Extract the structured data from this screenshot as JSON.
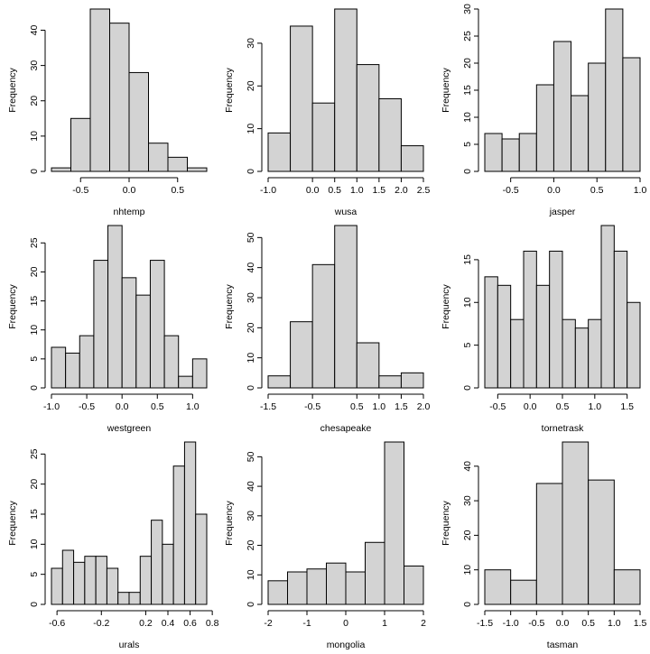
{
  "chart_data": [
    {
      "type": "bar",
      "xlabel": "nhtemp",
      "ylabel": "Frequency",
      "bin_edges": [
        -0.8,
        -0.6,
        -0.4,
        -0.2,
        0.0,
        0.2,
        0.4,
        0.6,
        0.8
      ],
      "values": [
        1,
        15,
        46,
        42,
        28,
        8,
        4,
        1
      ],
      "xlim": [
        -0.8,
        0.8
      ],
      "ylim": [
        0,
        46
      ],
      "x_ticks": [
        -0.5,
        0.0,
        0.5
      ],
      "x_tick_labels": [
        "-0.5",
        "0.0",
        "0.5"
      ],
      "y_ticks": [
        0,
        10,
        20,
        30,
        40
      ],
      "y_tick_labels": [
        "0",
        "10",
        "20",
        "30",
        "40"
      ]
    },
    {
      "type": "bar",
      "xlabel": "wusa",
      "ylabel": "Frequency",
      "bin_edges": [
        -1.0,
        -0.5,
        0.0,
        0.5,
        1.0,
        1.5,
        2.0,
        2.5
      ],
      "values": [
        9,
        34,
        16,
        38,
        25,
        17,
        6
      ],
      "xlim": [
        -1.0,
        2.5
      ],
      "ylim": [
        0,
        38
      ],
      "x_ticks": [
        -1.0,
        0.0,
        0.5,
        1.0,
        1.5,
        2.0,
        2.5
      ],
      "x_tick_labels": [
        "-1.0",
        "0.0",
        "0.5",
        "1.0",
        "1.5",
        "2.0",
        "2.5"
      ],
      "y_ticks": [
        0,
        10,
        20,
        30
      ],
      "y_tick_labels": [
        "0",
        "10",
        "20",
        "30"
      ]
    },
    {
      "type": "bar",
      "xlabel": "jasper",
      "ylabel": "Frequency",
      "bin_edges": [
        -0.8,
        -0.6,
        -0.4,
        -0.2,
        0.0,
        0.2,
        0.4,
        0.6,
        0.8,
        1.0
      ],
      "values": [
        7,
        6,
        7,
        16,
        24,
        14,
        20,
        30,
        21
      ],
      "xlim": [
        -0.8,
        1.0
      ],
      "ylim": [
        0,
        30
      ],
      "x_ticks": [
        -0.5,
        0.0,
        0.5,
        1.0
      ],
      "x_tick_labels": [
        "-0.5",
        "0.0",
        "0.5",
        "1.0"
      ],
      "y_ticks": [
        0,
        5,
        10,
        15,
        20,
        25,
        30
      ],
      "y_tick_labels": [
        "0",
        "5",
        "10",
        "15",
        "20",
        "25",
        "30"
      ]
    },
    {
      "type": "bar",
      "xlabel": "westgreen",
      "ylabel": "Frequency",
      "bin_edges": [
        -1.0,
        -0.8,
        -0.6,
        -0.4,
        -0.2,
        0.0,
        0.2,
        0.4,
        0.6,
        0.8,
        1.0,
        1.2
      ],
      "values": [
        7,
        6,
        9,
        22,
        28,
        19,
        16,
        22,
        9,
        2,
        5
      ],
      "xlim": [
        -1.0,
        1.2
      ],
      "ylim": [
        0,
        28
      ],
      "x_ticks": [
        -1.0,
        -0.5,
        0.0,
        0.5,
        1.0
      ],
      "x_tick_labels": [
        "-1.0",
        "-0.5",
        "0.0",
        "0.5",
        "1.0"
      ],
      "y_ticks": [
        0,
        5,
        10,
        15,
        20,
        25
      ],
      "y_tick_labels": [
        "0",
        "5",
        "10",
        "15",
        "20",
        "25"
      ]
    },
    {
      "type": "bar",
      "xlabel": "chesapeake",
      "ylabel": "Frequency",
      "bin_edges": [
        -1.5,
        -1.0,
        -0.5,
        0.0,
        0.5,
        1.0,
        1.5,
        2.0
      ],
      "values": [
        4,
        22,
        41,
        54,
        15,
        4,
        5
      ],
      "xlim": [
        -1.5,
        2.0
      ],
      "ylim": [
        0,
        54
      ],
      "x_ticks": [
        -1.5,
        -0.5,
        0.5,
        1.0,
        1.5,
        2.0
      ],
      "x_tick_labels": [
        "-1.5",
        "-0.5",
        "0.5",
        "1.0",
        "1.5",
        "2.0"
      ],
      "y_ticks": [
        0,
        10,
        20,
        30,
        40,
        50
      ],
      "y_tick_labels": [
        "0",
        "10",
        "20",
        "30",
        "40",
        "50"
      ]
    },
    {
      "type": "bar",
      "xlabel": "tornetrask",
      "ylabel": "Frequency",
      "bin_edges": [
        -0.7,
        -0.5,
        -0.3,
        -0.1,
        0.1,
        0.3,
        0.5,
        0.7,
        0.9,
        1.1,
        1.3,
        1.5,
        1.7
      ],
      "values": [
        13,
        12,
        8,
        16,
        12,
        16,
        8,
        7,
        8,
        19,
        16,
        10
      ],
      "xlim": [
        -0.7,
        1.7
      ],
      "ylim": [
        0,
        19
      ],
      "x_ticks": [
        -0.5,
        0.0,
        0.5,
        1.0,
        1.5
      ],
      "x_tick_labels": [
        "-0.5",
        "0.0",
        "0.5",
        "1.0",
        "1.5"
      ],
      "y_ticks": [
        0,
        5,
        10,
        15
      ],
      "y_tick_labels": [
        "0",
        "5",
        "10",
        "15"
      ]
    },
    {
      "type": "bar",
      "xlabel": "urals",
      "ylabel": "Frequency",
      "bin_edges": [
        -0.65,
        -0.55,
        -0.45,
        -0.35,
        -0.25,
        -0.15,
        -0.05,
        0.05,
        0.15,
        0.25,
        0.35,
        0.45,
        0.55,
        0.65,
        0.75
      ],
      "values": [
        6,
        9,
        7,
        8,
        8,
        6,
        2,
        2,
        8,
        14,
        10,
        23,
        27,
        15
      ],
      "xlim": [
        -0.65,
        0.75
      ],
      "ylim": [
        0,
        27
      ],
      "x_ticks": [
        -0.6,
        -0.2,
        0.2,
        0.4,
        0.6,
        0.8
      ],
      "x_tick_labels": [
        "-0.6",
        "-0.2",
        "0.2",
        "0.4",
        "0.6",
        "0.8"
      ],
      "y_ticks": [
        0,
        5,
        10,
        15,
        20,
        25
      ],
      "y_tick_labels": [
        "0",
        "5",
        "10",
        "15",
        "20",
        "25"
      ]
    },
    {
      "type": "bar",
      "xlabel": "mongolia",
      "ylabel": "Frequency",
      "bin_edges": [
        -2.0,
        -1.5,
        -1.0,
        -0.5,
        0.0,
        0.5,
        1.0,
        1.5,
        2.0
      ],
      "values": [
        8,
        11,
        12,
        14,
        11,
        21,
        55,
        13
      ],
      "xlim": [
        -2.0,
        2.0
      ],
      "ylim": [
        0,
        55
      ],
      "x_ticks": [
        -2,
        -1,
        0,
        1,
        2
      ],
      "x_tick_labels": [
        "-2",
        "-1",
        "0",
        "1",
        "2"
      ],
      "y_ticks": [
        0,
        10,
        20,
        30,
        40,
        50
      ],
      "y_tick_labels": [
        "0",
        "10",
        "20",
        "30",
        "40",
        "50"
      ]
    },
    {
      "type": "bar",
      "xlabel": "tasman",
      "ylabel": "Frequency",
      "bin_edges": [
        -1.5,
        -1.0,
        -0.5,
        0.0,
        0.5,
        1.0,
        1.5
      ],
      "values": [
        10,
        7,
        35,
        47,
        36,
        10
      ],
      "xlim": [
        -1.5,
        1.5
      ],
      "ylim": [
        0,
        47
      ],
      "x_ticks": [
        -1.5,
        -1.0,
        -0.5,
        0.0,
        0.5,
        1.0,
        1.5
      ],
      "x_tick_labels": [
        "-1.5",
        "-1.0",
        "-0.5",
        "0.0",
        "0.5",
        "1.0",
        "1.5"
      ],
      "y_ticks": [
        0,
        10,
        20,
        30,
        40
      ],
      "y_tick_labels": [
        "0",
        "10",
        "20",
        "30",
        "40"
      ]
    }
  ]
}
